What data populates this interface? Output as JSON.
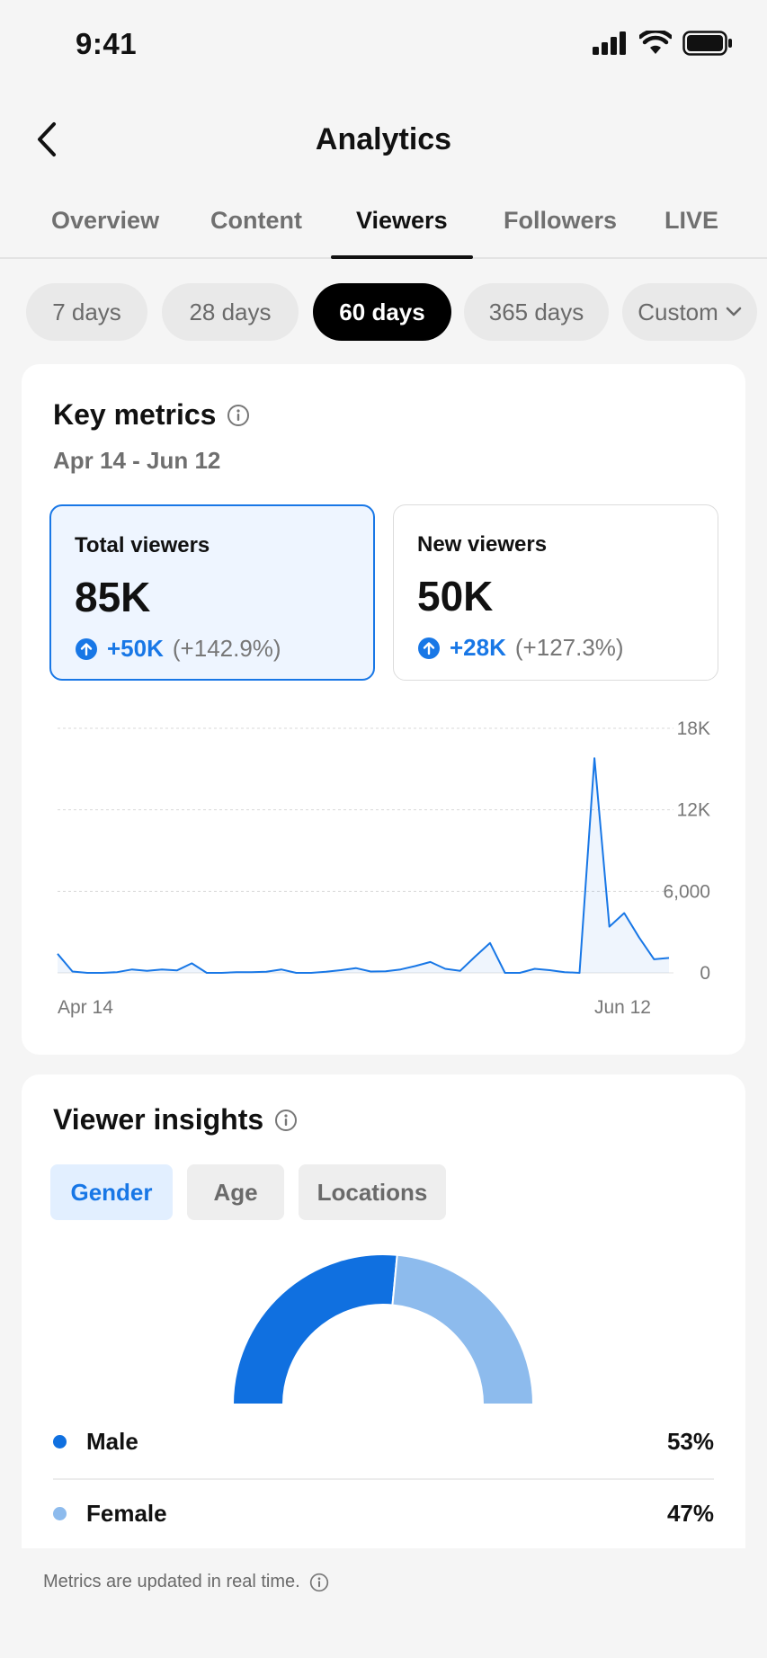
{
  "status_bar": {
    "time": "9:41",
    "icons": [
      "signal-icon",
      "wifi-icon",
      "battery-icon"
    ]
  },
  "nav": {
    "title": "Analytics",
    "back_icon": "chevron-left-icon"
  },
  "tabs": [
    {
      "label": "Overview",
      "active": false
    },
    {
      "label": "Content",
      "active": false
    },
    {
      "label": "Viewers",
      "active": true
    },
    {
      "label": "Followers",
      "active": false
    },
    {
      "label": "LIVE",
      "active": false
    }
  ],
  "date_filters": [
    {
      "label": "7 days",
      "active": false
    },
    {
      "label": "28 days",
      "active": false
    },
    {
      "label": "60 days",
      "active": true
    },
    {
      "label": "365 days",
      "active": false
    },
    {
      "label": "Custom",
      "active": false,
      "icon": "chevron-down-icon"
    }
  ],
  "key_metrics": {
    "title": "Key metrics",
    "date_range": "Apr 14 - Jun 12",
    "cards": [
      {
        "label": "Total viewers",
        "value": "85K",
        "change": "+50K",
        "change_pct": "(+142.9%)",
        "selected": true
      },
      {
        "label": "New viewers",
        "value": "50K",
        "change": "+28K",
        "change_pct": "(+127.3%)",
        "selected": false
      }
    ]
  },
  "chart_data": {
    "type": "area",
    "x_start_label": "Apr 14",
    "x_end_label": "Jun 12",
    "y_ticks": [
      "18K",
      "12K",
      "6,000",
      "0"
    ],
    "ylim": [
      0,
      18000
    ],
    "grid": true,
    "series_color": "#1877e6",
    "values": [
      1400,
      100,
      0,
      0,
      50,
      250,
      150,
      250,
      180,
      700,
      0,
      0,
      50,
      50,
      80,
      250,
      0,
      0,
      80,
      200,
      350,
      100,
      120,
      250,
      500,
      800,
      300,
      150,
      1200,
      2200,
      0,
      0,
      300,
      200,
      50,
      0,
      15800,
      3400,
      4400,
      2600,
      1000,
      1100
    ]
  },
  "viewer_insights": {
    "title": "Viewer insights",
    "segments": [
      {
        "label": "Gender",
        "active": true
      },
      {
        "label": "Age",
        "active": false
      },
      {
        "label": "Locations",
        "active": false
      }
    ],
    "gender": [
      {
        "label": "Male",
        "value": "53%",
        "fraction": 0.53,
        "color": "#1070e0"
      },
      {
        "label": "Female",
        "value": "47%",
        "fraction": 0.47,
        "color": "#8dbbed"
      }
    ]
  },
  "footer": {
    "note": "Metrics are updated in real time."
  }
}
